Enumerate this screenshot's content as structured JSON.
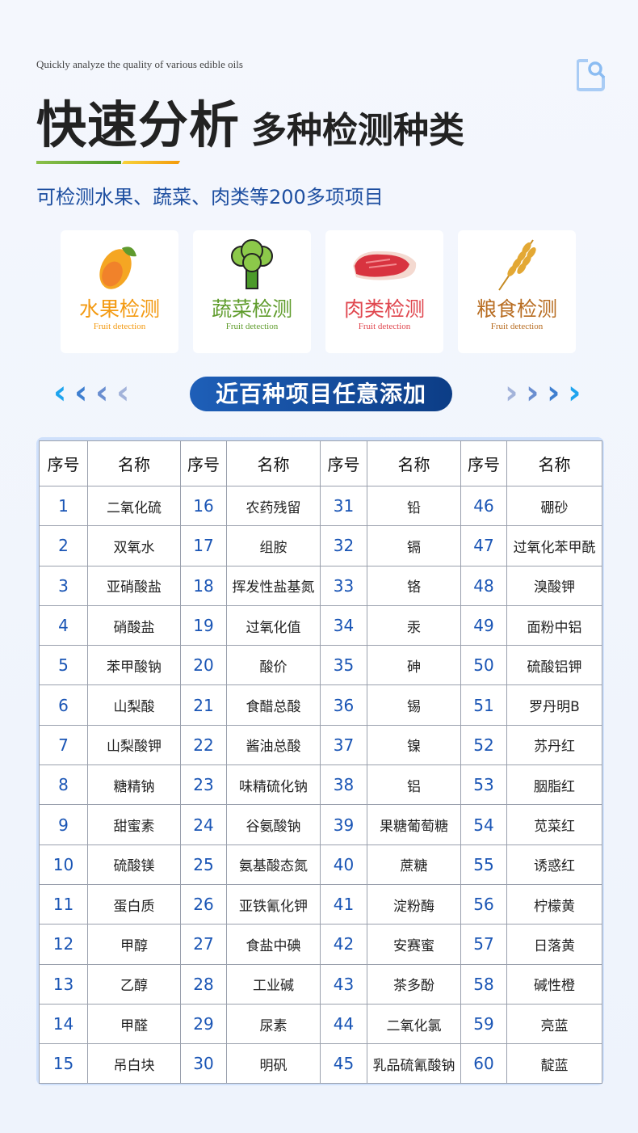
{
  "header": {
    "tagline_en": "Quickly analyze the quality of various edible oils",
    "title_main": "快速分析",
    "title_sub": "多种检测种类",
    "subtitle": "可检测水果、蔬菜、肉类等200多项项目",
    "corner_icon": "document-search-icon",
    "accent_colors": [
      "#8cc04a",
      "#f39b0c"
    ]
  },
  "categories": [
    {
      "label": "水果检测",
      "en": "Fruit detection",
      "color": "#f39a12",
      "icon": "mango-icon"
    },
    {
      "label": "蔬菜检测",
      "en": "Fruit detection",
      "color": "#5f9c2c",
      "icon": "broccoli-icon"
    },
    {
      "label": "肉类检测",
      "en": "Fruit detection",
      "color": "#e0474f",
      "icon": "meat-icon"
    },
    {
      "label": "粮食检测",
      "en": "Fruit detection",
      "color": "#b86d22",
      "icon": "wheat-icon"
    }
  ],
  "banner": {
    "label": "近百种项目任意添加",
    "color": "#1a52a8"
  },
  "table": {
    "headers": [
      "序号",
      "名称",
      "序号",
      "名称",
      "序号",
      "名称",
      "序号",
      "名称"
    ],
    "items": [
      {
        "no": "1",
        "name": "二氧化硫"
      },
      {
        "no": "2",
        "name": "双氧水"
      },
      {
        "no": "3",
        "name": "亚硝酸盐"
      },
      {
        "no": "4",
        "name": "硝酸盐"
      },
      {
        "no": "5",
        "name": "苯甲酸钠"
      },
      {
        "no": "6",
        "name": "山梨酸"
      },
      {
        "no": "7",
        "name": "山梨酸钾"
      },
      {
        "no": "8",
        "name": "糖精钠"
      },
      {
        "no": "9",
        "name": "甜蜜素"
      },
      {
        "no": "10",
        "name": "硫酸镁"
      },
      {
        "no": "11",
        "name": "蛋白质"
      },
      {
        "no": "12",
        "name": "甲醇"
      },
      {
        "no": "13",
        "name": "乙醇"
      },
      {
        "no": "14",
        "name": "甲醛"
      },
      {
        "no": "15",
        "name": "吊白块"
      },
      {
        "no": "16",
        "name": "农药残留"
      },
      {
        "no": "17",
        "name": "组胺"
      },
      {
        "no": "18",
        "name": "挥发性盐基氮"
      },
      {
        "no": "19",
        "name": "过氧化值"
      },
      {
        "no": "20",
        "name": "酸价"
      },
      {
        "no": "21",
        "name": "食醋总酸"
      },
      {
        "no": "22",
        "name": "酱油总酸"
      },
      {
        "no": "23",
        "name": "味精硫化钠"
      },
      {
        "no": "24",
        "name": "谷氨酸钠"
      },
      {
        "no": "25",
        "name": "氨基酸态氮"
      },
      {
        "no": "26",
        "name": "亚铁氰化钾"
      },
      {
        "no": "27",
        "name": "食盐中碘"
      },
      {
        "no": "28",
        "name": "工业碱"
      },
      {
        "no": "29",
        "name": "尿素"
      },
      {
        "no": "30",
        "name": "明矾"
      },
      {
        "no": "31",
        "name": "铅"
      },
      {
        "no": "32",
        "name": "镉"
      },
      {
        "no": "33",
        "name": "铬"
      },
      {
        "no": "34",
        "name": "汞"
      },
      {
        "no": "35",
        "name": "砷"
      },
      {
        "no": "36",
        "name": "锡"
      },
      {
        "no": "37",
        "name": "镍"
      },
      {
        "no": "38",
        "name": "铝"
      },
      {
        "no": "39",
        "name": "果糖葡萄糖"
      },
      {
        "no": "40",
        "name": "蔗糖"
      },
      {
        "no": "41",
        "name": "淀粉酶"
      },
      {
        "no": "42",
        "name": "安赛蜜"
      },
      {
        "no": "43",
        "name": "茶多酚"
      },
      {
        "no": "44",
        "name": "二氧化氯"
      },
      {
        "no": "45",
        "name": "乳品硫氰酸钠"
      },
      {
        "no": "46",
        "name": "硼砂"
      },
      {
        "no": "47",
        "name": "过氧化苯甲酰"
      },
      {
        "no": "48",
        "name": "溴酸钾"
      },
      {
        "no": "49",
        "name": "面粉中铝"
      },
      {
        "no": "50",
        "name": "硫酸铝钾"
      },
      {
        "no": "51",
        "name": "罗丹明B"
      },
      {
        "no": "52",
        "name": "苏丹红"
      },
      {
        "no": "53",
        "name": "胭脂红"
      },
      {
        "no": "54",
        "name": "苋菜红"
      },
      {
        "no": "55",
        "name": "诱惑红"
      },
      {
        "no": "56",
        "name": "柠檬黄"
      },
      {
        "no": "57",
        "name": "日落黄"
      },
      {
        "no": "58",
        "name": "碱性橙"
      },
      {
        "no": "59",
        "name": "亮蓝"
      },
      {
        "no": "60",
        "name": "靛蓝"
      }
    ]
  }
}
